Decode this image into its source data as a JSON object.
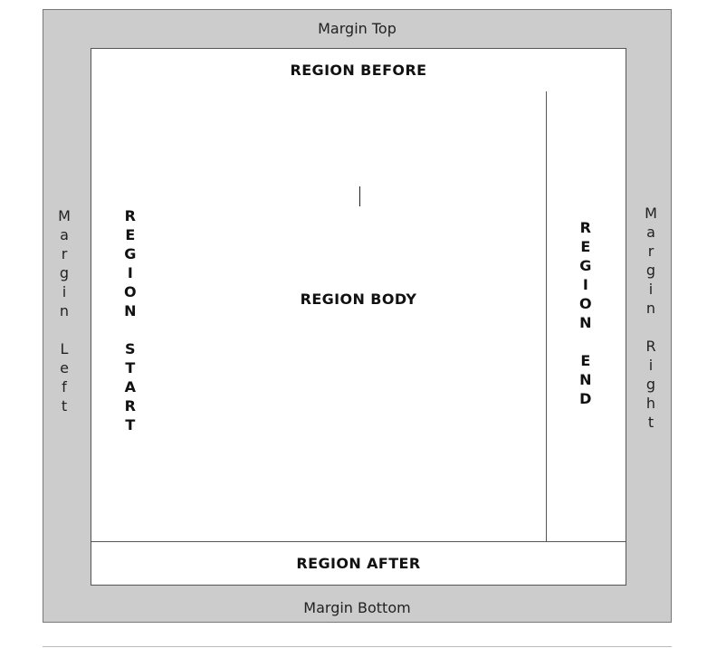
{
  "colors": {
    "margin_fill": "#cccccc",
    "region_fill": "#ffffff",
    "border": "#555555"
  },
  "margins": {
    "top": "Margin Top",
    "bottom": "Margin Bottom",
    "left": "Margin Left",
    "right": "Margin Right"
  },
  "regions": {
    "before": "REGION BEFORE",
    "after": "REGION AFTER",
    "start": "REGION START",
    "end": "REGION END",
    "body": "REGION BODY"
  }
}
